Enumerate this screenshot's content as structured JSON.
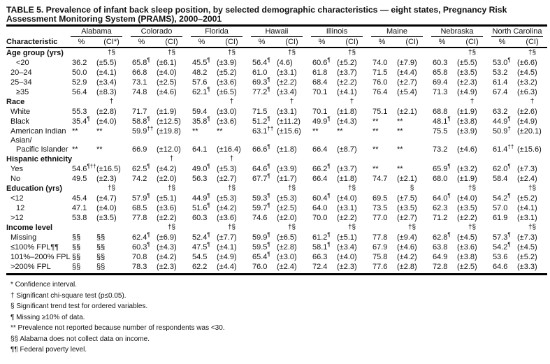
{
  "title": "TABLE 5. Prevalence of infant back sleep position, by selected demographic characteristics — eight states, Pregnancy Risk Assessment Monitoring System (PRAMS), 2000–2001",
  "header": {
    "characteristic": "Characteristic",
    "pct": "%",
    "ci_first": "(CI*)",
    "ci": "(CI)"
  },
  "states": [
    "Alabama",
    "Colorado",
    "Florida",
    "Hawaii",
    "Illinois",
    "Maine",
    "Nebraska",
    "North Carolina"
  ],
  "groups": [
    {
      "label": "Age group (yrs)",
      "sig": [
        "†§",
        "†§",
        "†§",
        "†§",
        "†§",
        "",
        "†§",
        "†§"
      ],
      "rows": [
        {
          "label": "<20",
          "indent": 2,
          "cells": [
            [
              "36.2",
              "",
              "(±5.5)"
            ],
            [
              "65.8",
              "¶",
              "(±6.1)"
            ],
            [
              "45.5",
              "¶",
              "(±3.9)"
            ],
            [
              "56.4",
              "¶",
              "(4.6)"
            ],
            [
              "60.6",
              "¶",
              "(±5.2)"
            ],
            [
              "74.0",
              "",
              "(±7.9)"
            ],
            [
              "60.3",
              "",
              "(±5.5)"
            ],
            [
              "53.0",
              "¶",
              "(±6.6)"
            ]
          ]
        },
        {
          "label": "20–24",
          "indent": 1,
          "cells": [
            [
              "50.0",
              "",
              "(±4.1)"
            ],
            [
              "66.8",
              "",
              "(±4.0)"
            ],
            [
              "48.2",
              "",
              "(±5.2)"
            ],
            [
              "61.0",
              "",
              "(±3.1)"
            ],
            [
              "61.8",
              "",
              "(±3.7)"
            ],
            [
              "71.5",
              "",
              "(±4.4)"
            ],
            [
              "65.8",
              "",
              "(±3.5)"
            ],
            [
              "53.2",
              "",
              "(±4.5)"
            ]
          ]
        },
        {
          "label": "25–34",
          "indent": 1,
          "cells": [
            [
              "52.9",
              "",
              "(±3.4)"
            ],
            [
              "73.1",
              "",
              "(±2.5)"
            ],
            [
              "57.6",
              "",
              "(±3.6)"
            ],
            [
              "69.3",
              "¶",
              "(±2.2)"
            ],
            [
              "68.4",
              "",
              "(±2.2)"
            ],
            [
              "76.0",
              "",
              "(±2.7)"
            ],
            [
              "69.4",
              "",
              "(±2.3)"
            ],
            [
              "61.4",
              "",
              "(±3.2)"
            ]
          ]
        },
        {
          "label": "≥35",
          "indent": 2,
          "cells": [
            [
              "56.4",
              "",
              "(±8.3)"
            ],
            [
              "74.8",
              "",
              "(±4.6)"
            ],
            [
              "62.1",
              "¶",
              "(±6.5)"
            ],
            [
              "77.2",
              "¶",
              "(±3.4)"
            ],
            [
              "70.1",
              "",
              "(±4.1)"
            ],
            [
              "76.4",
              "",
              "(±5.4)"
            ],
            [
              "71.3",
              "",
              "(±4.9)"
            ],
            [
              "67.4",
              "",
              "(±6.3)"
            ]
          ]
        }
      ]
    },
    {
      "label": "Race",
      "sig": [
        "†",
        "",
        "†",
        "†",
        "†",
        "",
        "†",
        "†"
      ],
      "rows": [
        {
          "label": "White",
          "indent": 1,
          "cells": [
            [
              "55.3",
              "",
              "(±2.8)"
            ],
            [
              "71.7",
              "",
              "(±1.9)"
            ],
            [
              "59.4",
              "",
              "(±3.0)"
            ],
            [
              "71.5",
              "",
              "(±3.1)"
            ],
            [
              "70.1",
              "",
              "(±1.8)"
            ],
            [
              "75.1",
              "",
              "(±2.1)"
            ],
            [
              "68.8",
              "",
              "(±1.9)"
            ],
            [
              "63.2",
              "",
              "(±2.6)"
            ]
          ]
        },
        {
          "label": "Black",
          "indent": 1,
          "cells": [
            [
              "35.4",
              "¶",
              "(±4.0)"
            ],
            [
              "58.8",
              "¶",
              "(±12.5)"
            ],
            [
              "35.8",
              "¶",
              "(±3.6)"
            ],
            [
              "51.2",
              "¶",
              "(±11.2)"
            ],
            [
              "49.9",
              "¶",
              "(±4.3)"
            ],
            [
              "**",
              "",
              "**"
            ],
            [
              "48.1",
              "¶",
              "(±3.8)"
            ],
            [
              "44.9",
              "¶",
              "(±4.9)"
            ]
          ]
        },
        {
          "label": "American Indian",
          "indent": 1,
          "cells": [
            [
              "**",
              "",
              "**"
            ],
            [
              "59.9",
              "††",
              "(±19.8)"
            ],
            [
              "**",
              "",
              "**"
            ],
            [
              "63.1",
              "††",
              "(±15.6)"
            ],
            [
              "**",
              "",
              "**"
            ],
            [
              "**",
              "",
              "**"
            ],
            [
              "75.5",
              "",
              "(±3.9)"
            ],
            [
              "50.9",
              "†",
              "(±20.1)"
            ]
          ]
        },
        {
          "label": "Asian/",
          "indent": 1,
          "cells": null
        },
        {
          "label": "Pacific Islander",
          "indent": 2,
          "cells": [
            [
              "**",
              "",
              "**"
            ],
            [
              "66.9",
              "",
              "(±12.0)"
            ],
            [
              "64.1",
              "",
              "(±16.4)"
            ],
            [
              "66.6",
              "¶",
              "(±1.8)"
            ],
            [
              "66.4",
              "",
              "(±8.7)"
            ],
            [
              "**",
              "",
              "**"
            ],
            [
              "73.2",
              "",
              "(±4.6)"
            ],
            [
              "61.4",
              "††",
              "(±15.6)"
            ]
          ]
        }
      ]
    },
    {
      "label": "Hispanic ethnicity",
      "sig": [
        "",
        "†",
        "†",
        "",
        "",
        "",
        "",
        ""
      ],
      "rows": [
        {
          "label": "Yes",
          "indent": 1,
          "cells": [
            [
              "54.6",
              "¶††",
              "(±16.5)"
            ],
            [
              "62.5",
              "¶",
              "(±4.2)"
            ],
            [
              "49.0",
              "¶",
              "(±5.3)"
            ],
            [
              "64.6",
              "¶",
              "(±3.9)"
            ],
            [
              "66.2",
              "¶",
              "(±3.7)"
            ],
            [
              "**",
              "",
              "**"
            ],
            [
              "65.9",
              "¶",
              "(±3.2)"
            ],
            [
              "62.0",
              "¶",
              "(±7.3)"
            ]
          ]
        },
        {
          "label": "No",
          "indent": 1,
          "cells": [
            [
              "49.5",
              "",
              "(±2.3)"
            ],
            [
              "74.2",
              "",
              "(±2.0)"
            ],
            [
              "56.3",
              "",
              "(±2.7)"
            ],
            [
              "67.7",
              "¶",
              "(±1.7)"
            ],
            [
              "66.4",
              "",
              "(±1.8)"
            ],
            [
              "74.7",
              "",
              "(±2.1)"
            ],
            [
              "68.0",
              "",
              "(±1.9)"
            ],
            [
              "58.4",
              "",
              "(±2.4)"
            ]
          ]
        }
      ]
    },
    {
      "label": "Education (yrs)",
      "sig": [
        "†§",
        "†§",
        "†§",
        "†§",
        "†§",
        "§",
        "†§",
        "†§"
      ],
      "rows": [
        {
          "label": "<12",
          "indent": 1,
          "cells": [
            [
              "45.4",
              "",
              "(±4.7)"
            ],
            [
              "57.9",
              "¶",
              "(±5.1)"
            ],
            [
              "44.9",
              "¶",
              "(±5.3)"
            ],
            [
              "59.3",
              "¶",
              "(±5.3)"
            ],
            [
              "60.4",
              "¶",
              "(±4.0)"
            ],
            [
              "69.5",
              "",
              "(±7.5)"
            ],
            [
              "64.0",
              "¶",
              "(±4.0)"
            ],
            [
              "54.2",
              "¶",
              "(±5.2)"
            ]
          ]
        },
        {
          "label": "12",
          "indent": 2,
          "cells": [
            [
              "47.1",
              "",
              "(±4.0)"
            ],
            [
              "68.5",
              "",
              "(±3.6)"
            ],
            [
              "51.6",
              "¶",
              "(±4.2)"
            ],
            [
              "59.7",
              "¶",
              "(±2.5)"
            ],
            [
              "64.0",
              "",
              "(±3.1)"
            ],
            [
              "73.5",
              "",
              "(±3.5)"
            ],
            [
              "62.3",
              "",
              "(±3.5)"
            ],
            [
              "57.0",
              "",
              "(±4.1)"
            ]
          ]
        },
        {
          "label": ">12",
          "indent": 1,
          "cells": [
            [
              "53.8",
              "",
              "(±3.5)"
            ],
            [
              "77.8",
              "",
              "(±2.2)"
            ],
            [
              "60.3",
              "",
              "(±3.6)"
            ],
            [
              "74.6",
              "",
              "(±2.0)"
            ],
            [
              "70.0",
              "",
              "(±2.2)"
            ],
            [
              "77.0",
              "",
              "(±2.7)"
            ],
            [
              "71.2",
              "",
              "(±2.2)"
            ],
            [
              "61.9",
              "",
              "(±3.1)"
            ]
          ]
        }
      ]
    },
    {
      "label": "Income level",
      "sig": [
        "",
        "†§",
        "†§",
        "†§",
        "†§",
        "†§",
        "†§",
        "†§"
      ],
      "rows": [
        {
          "label": "Missing",
          "indent": 1,
          "cells": [
            [
              "§§",
              "",
              "§§"
            ],
            [
              "62.4",
              "¶",
              "(±6.9)"
            ],
            [
              "52.4",
              "¶",
              "(±7.7)"
            ],
            [
              "59.9",
              "¶",
              "(±6.5)"
            ],
            [
              "61.2",
              "¶",
              "(±5.1)"
            ],
            [
              "77.8",
              "",
              "(±9.4)"
            ],
            [
              "62.8",
              "¶",
              "(±4.5)"
            ],
            [
              "57.3",
              "¶",
              "(±7.3)"
            ]
          ]
        },
        {
          "label": "≤100% FPL¶¶",
          "indent": 1,
          "cells": [
            [
              "§§",
              "",
              "§§"
            ],
            [
              "60.3",
              "¶",
              "(±4.3)"
            ],
            [
              "47.5",
              "¶",
              "(±4.1)"
            ],
            [
              "59.5",
              "¶",
              "(±2.8)"
            ],
            [
              "58.1",
              "¶",
              "(±3.4)"
            ],
            [
              "67.9",
              "",
              "(±4.6)"
            ],
            [
              "63.8",
              "",
              "(±3.6)"
            ],
            [
              "54.2",
              "¶",
              "(±4.5)"
            ]
          ]
        },
        {
          "label": "101%–200% FPL",
          "indent": 1,
          "cells": [
            [
              "§§",
              "",
              "§§"
            ],
            [
              "70.8",
              "",
              "(±4.2)"
            ],
            [
              "54.5",
              "",
              "(±4.9)"
            ],
            [
              "65.4",
              "¶",
              "(±3.0)"
            ],
            [
              "66.3",
              "",
              "(±4.0)"
            ],
            [
              "75.8",
              "",
              "(±4.2)"
            ],
            [
              "64.9",
              "",
              "(±3.8)"
            ],
            [
              "53.6",
              "",
              "(±5.2)"
            ]
          ]
        },
        {
          "label": ">200% FPL",
          "indent": 1,
          "cells": [
            [
              "§§",
              "",
              "§§"
            ],
            [
              "78.3",
              "",
              "(±2.3)"
            ],
            [
              "62.2",
              "",
              "(±4.4)"
            ],
            [
              "76.0",
              "",
              "(±2.4)"
            ],
            [
              "72.4",
              "",
              "(±2.3)"
            ],
            [
              "77.6",
              "",
              "(±2.8)"
            ],
            [
              "72.8",
              "",
              "(±2.5)"
            ],
            [
              "64.6",
              "",
              "(±3.3)"
            ]
          ]
        }
      ]
    }
  ],
  "footnotes": [
    "* Confidence interval.",
    "† Significant chi-square test (p≤0.05).",
    "§ Significant trend test for ordered variables.",
    "¶ Missing ≥10% of data.",
    "** Prevalence not reported because number of respondents was <30.",
    "§§ Alabama does not collect data on income.",
    "¶¶ Federal poverty level."
  ]
}
